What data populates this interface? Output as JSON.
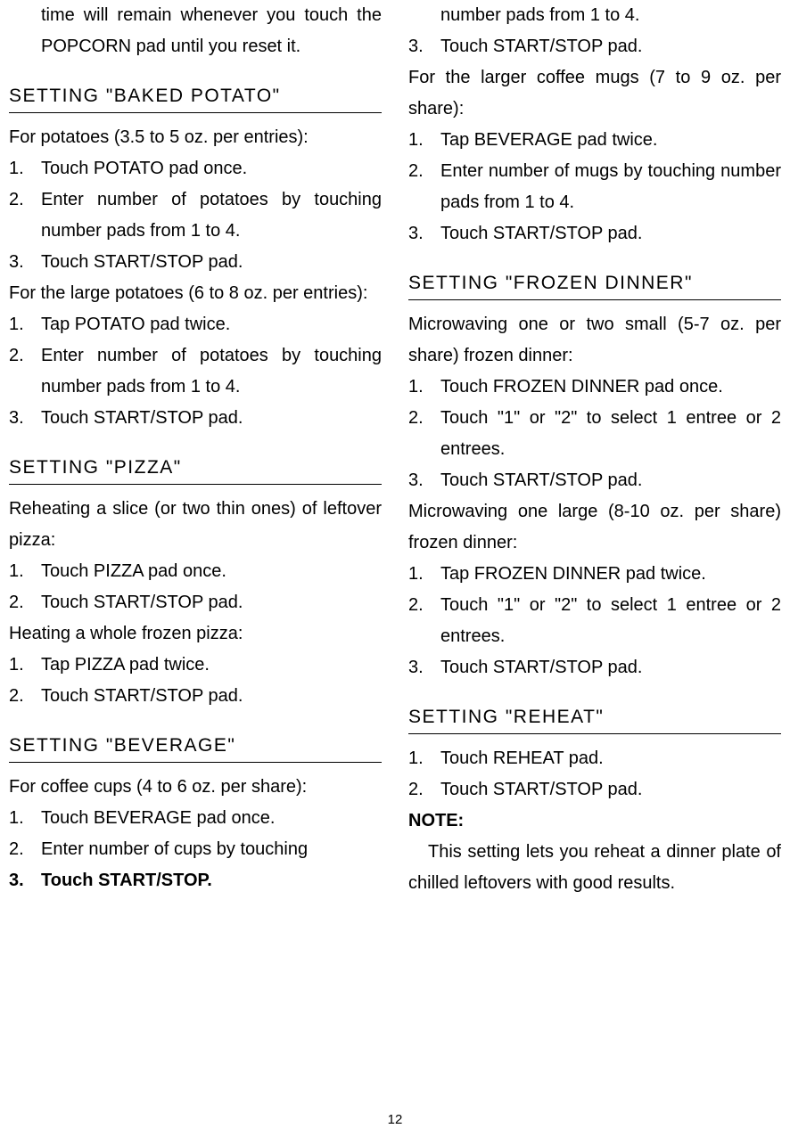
{
  "page_number": "12",
  "left_column": {
    "continued": "time will remain whenever you touch the POPCORN pad until you reset it.",
    "sections": [
      {
        "heading": "SETTING \"BAKED POTATO\"",
        "intro1": "For potatoes (3.5 to 5 oz. per entries):",
        "list1": [
          "Touch POTATO pad once.",
          "Enter number of potatoes by touching number pads from 1 to 4.",
          "Touch START/STOP pad."
        ],
        "intro2": "For the large potatoes (6 to 8 oz. per entries):",
        "list2": [
          "Tap POTATO pad twice.",
          "Enter number of potatoes by touching number pads from 1 to 4.",
          "Touch START/STOP pad."
        ]
      },
      {
        "heading": "SETTING \"PIZZA\"",
        "intro1": "Reheating a slice (or two thin ones) of leftover pizza:",
        "list1": [
          "Touch PIZZA pad once.",
          "Touch START/STOP pad."
        ],
        "intro2": "Heating a whole frozen pizza:",
        "list2": [
          "Tap PIZZA pad twice.",
          "Touch START/STOP pad."
        ]
      },
      {
        "heading": "SETTING \"BEVERAGE\"",
        "intro1": "For coffee cups (4 to 6 oz. per share):",
        "list1": [
          "Touch BEVERAGE pad once.",
          "Enter number of cups by touching",
          "Touch START/STOP."
        ]
      }
    ]
  },
  "right_column": {
    "continued_list": [
      "number pads from 1 to 4.",
      "Touch START/STOP pad."
    ],
    "continued_intro": "For the larger coffee mugs (7 to 9 oz. per share):",
    "continued_list2": [
      "Tap BEVERAGE pad twice.",
      "Enter number of mugs by touching number pads from 1 to 4.",
      "Touch START/STOP pad."
    ],
    "sections": [
      {
        "heading": "SETTING \"FROZEN DINNER\"",
        "intro1": "Microwaving one or two small (5-7 oz. per share) frozen dinner:",
        "list1": [
          "Touch FROZEN DINNER pad once.",
          "Touch \"1\" or \"2\" to select 1 entree or 2 entrees.",
          "Touch START/STOP pad."
        ],
        "intro2": "Microwaving one large (8-10 oz. per share) frozen dinner:",
        "list2": [
          "Tap FROZEN DINNER pad twice.",
          "Touch \"1\" or \"2\" to select 1 entree or 2 entrees.",
          "Touch START/STOP pad."
        ]
      },
      {
        "heading": "SETTING \"REHEAT\"",
        "list1": [
          "Touch REHEAT pad.",
          "Touch START/STOP pad."
        ],
        "note_label": "NOTE:",
        "note_text": "This setting lets you reheat a dinner plate of chilled leftovers with good results."
      }
    ]
  }
}
